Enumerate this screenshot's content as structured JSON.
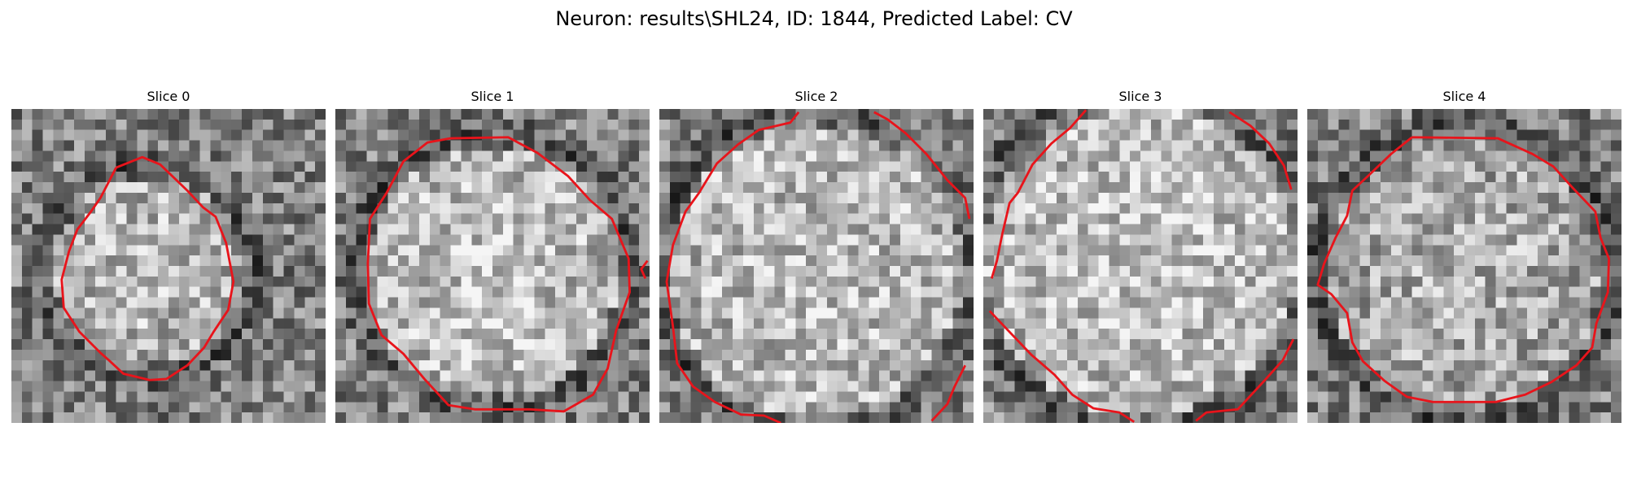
{
  "figure": {
    "title": "Neuron: results\\SHL24, ID: 1844, Predicted Label: CV"
  },
  "panels": [
    {
      "title": "Slice 0"
    },
    {
      "title": "Slice 1"
    },
    {
      "title": "Slice 2"
    },
    {
      "title": "Slice 3"
    },
    {
      "title": "Slice 4"
    }
  ],
  "colors": {
    "contour": "#e8141b",
    "background": "#ffffff"
  }
}
